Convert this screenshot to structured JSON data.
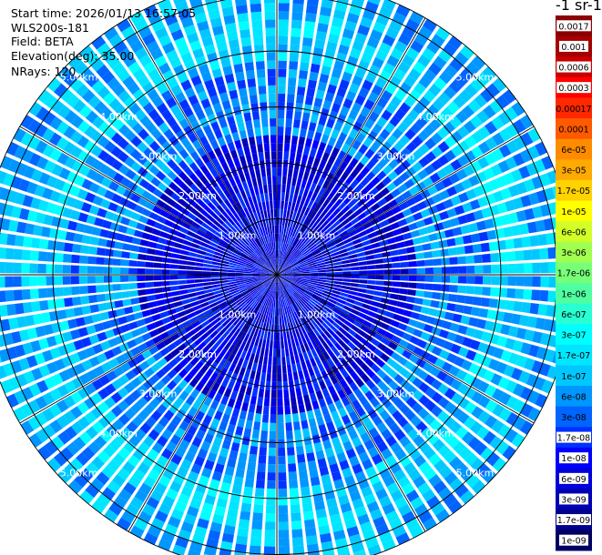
{
  "header": {
    "start_time": "Start time: 2026/01/13 16:57:05",
    "instrument": "WLS200s-181",
    "field": "Field: BETA",
    "elevation": "Elevation(deg): 35.00",
    "nrays": "NRays: 120"
  },
  "colorbar": {
    "title": "-1 sr-1",
    "labels": [
      "0.0017",
      "0.001",
      "0.0006",
      "0.0003",
      "0.00017",
      "0.0001",
      "6e-05",
      "3e-05",
      "1.7e-05",
      "1e-05",
      "6e-06",
      "3e-06",
      "1.7e-06",
      "1e-06",
      "6e-07",
      "3e-07",
      "1.7e-07",
      "1e-07",
      "6e-08",
      "3e-08",
      "1.7e-08",
      "1e-08",
      "6e-09",
      "3e-09",
      "1.7e-09",
      "1e-09"
    ],
    "colors": [
      "#8b0000",
      "#a50000",
      "#c80000",
      "#ff0000",
      "#ff2800",
      "#ff5a00",
      "#ff8c00",
      "#ffaa00",
      "#ffd200",
      "#ffff00",
      "#d2ff28",
      "#a0ff50",
      "#78ff78",
      "#50ffa0",
      "#28ffd2",
      "#00ffff",
      "#00e6ff",
      "#00c8ff",
      "#0096ff",
      "#0064ff",
      "#0032ff",
      "#0000ff",
      "#0000dc",
      "#0000b4",
      "#00008c",
      "#000064"
    ]
  },
  "chart_data": {
    "type": "heatmap",
    "projection": "polar PPI",
    "field": "BETA",
    "elevation_deg": 35.0,
    "n_rays": 120,
    "range_rings_km": [
      1.0,
      2.0,
      3.0,
      4.0,
      5.0
    ],
    "ring_labels": [
      "1.00km",
      "2.00km",
      "3.00km",
      "4.00km",
      "5.00km"
    ],
    "max_range_km": 5.3,
    "spoke_angles_deg": [
      0,
      30,
      60,
      90,
      120,
      150,
      180,
      210,
      240,
      270,
      300,
      330
    ],
    "colorscale": "log",
    "value_range": [
      1e-09,
      0.0017
    ],
    "grid": true,
    "legend": "right colorbar"
  }
}
